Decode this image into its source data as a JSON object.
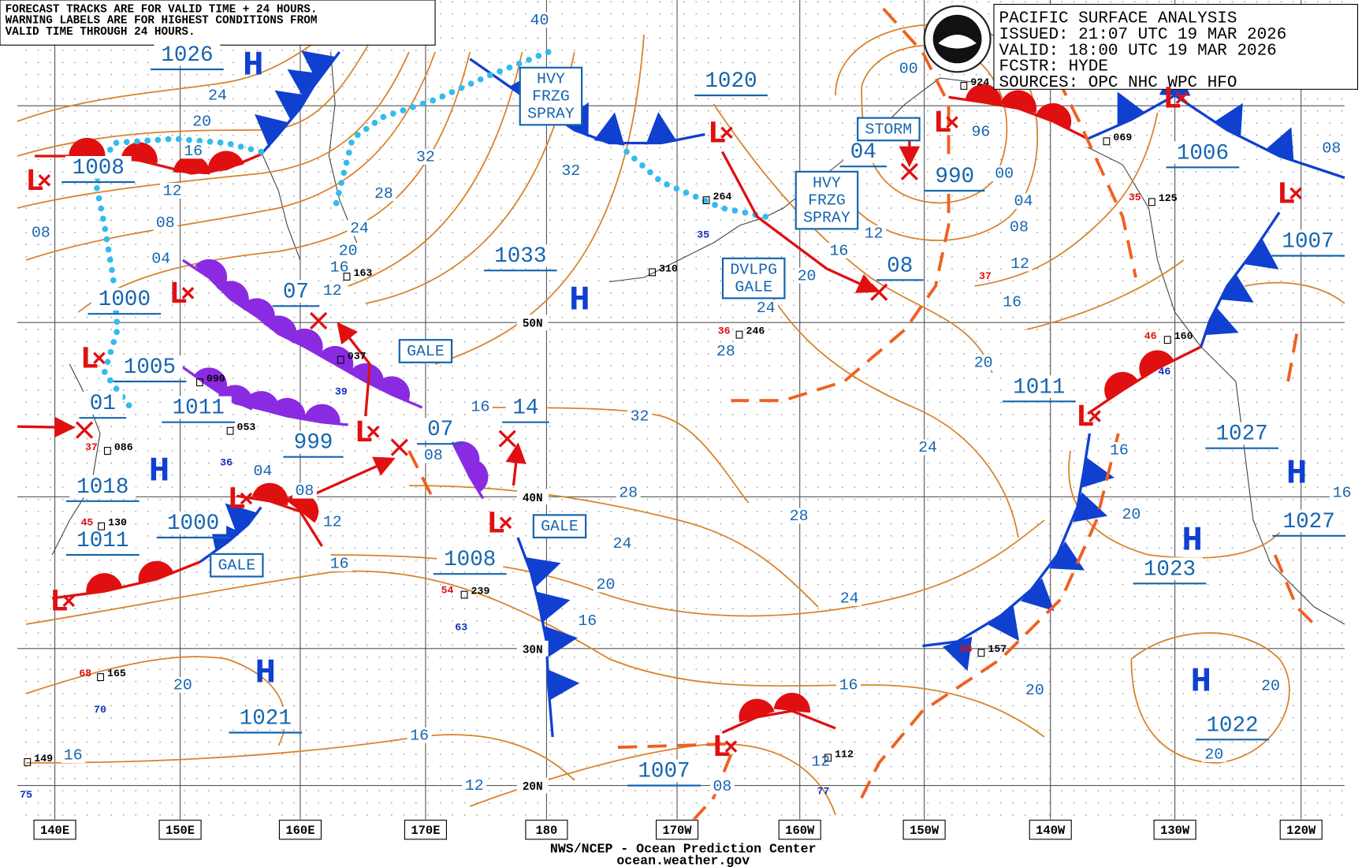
{
  "notice": [
    "FORECAST TRACKS ARE FOR VALID TIME + 24 HOURS.",
    "WARNING LABELS ARE FOR HIGHEST CONDITIONS FROM",
    "VALID TIME THROUGH 24 HOURS."
  ],
  "title_block": [
    "PACIFIC SURFACE ANALYSIS",
    "ISSUED: 21:07 UTC 19 MAR 2026",
    "VALID:  18:00 UTC 19 MAR 2026",
    "FCSTR:  HYDE",
    "SOURCES:  OPC NHC WPC HFO"
  ],
  "footer": [
    "NWS/NCEP - Ocean Prediction Center",
    "ocean.weather.gov"
  ],
  "lat_labels": [
    "50N",
    "40N",
    "30N",
    "20N"
  ],
  "lon_labels": [
    "140E",
    "150E",
    "160E",
    "170E",
    "180",
    "170W",
    "160W",
    "150W",
    "140W",
    "130W",
    "120W"
  ],
  "high_symbol": "H",
  "low_symbol": "L",
  "pressure_labels": [
    "1026",
    "1008",
    "1000",
    "1005",
    "01",
    "1011",
    "1018",
    "1011",
    "1000",
    "999",
    "07",
    "07",
    "14",
    "1033",
    "1020",
    "04",
    "990",
    "08",
    "1006",
    "1007",
    "1011",
    "1027",
    "1027",
    "1023",
    "1008",
    "1021",
    "1007",
    "1022"
  ],
  "isobar_labels": [
    "24",
    "20",
    "16",
    "12",
    "08",
    "04",
    "08",
    "16",
    "20",
    "16",
    "12",
    "16",
    "20",
    "24",
    "28",
    "32",
    "16",
    "08",
    "12",
    "16",
    "04",
    "08",
    "12",
    "16",
    "20",
    "24",
    "28",
    "32",
    "32",
    "20",
    "16",
    "12",
    "24",
    "28",
    "20",
    "24",
    "28",
    "24",
    "16",
    "12",
    "08",
    "20",
    "20",
    "16",
    "16",
    "12",
    "08",
    "04",
    "00",
    "96",
    "00",
    "16",
    "20",
    "20",
    "40",
    "08"
  ],
  "warnings": [
    {
      "lines": [
        "HVY",
        "FRZG",
        "SPRAY"
      ]
    },
    {
      "lines": [
        "HVY",
        "FRZG",
        "SPRAY"
      ]
    },
    {
      "lines": [
        "STORM"
      ]
    },
    {
      "lines": [
        "DVLPG",
        "GALE"
      ]
    },
    {
      "lines": [
        "GALE"
      ]
    },
    {
      "lines": [
        "GALE"
      ]
    },
    {
      "lines": [
        "GALE"
      ]
    }
  ],
  "station_numbers_black": [
    "264",
    "310",
    "246",
    "163",
    "239",
    "157",
    "165",
    "112",
    "125",
    "069",
    "924",
    "160",
    "037",
    "090",
    "053",
    "086",
    "130",
    "149"
  ],
  "station_numbers_red": [
    "54",
    "68",
    "68",
    "46",
    "36",
    "37",
    "37",
    "35",
    "45"
  ],
  "station_numbers_blue": [
    "35",
    "39",
    "36",
    "63",
    "70",
    "77",
    "46",
    "75"
  ]
}
